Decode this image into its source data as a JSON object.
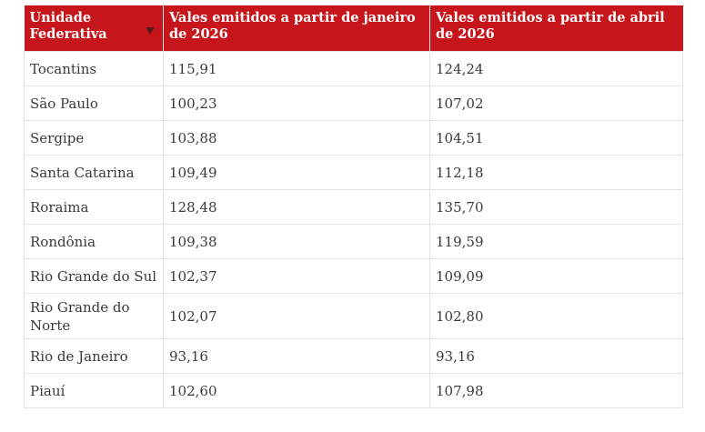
{
  "table": {
    "headers": [
      "Unidade Federativa",
      "Vales emitidos a partir de janeiro de 2026",
      "Vales emitidos a partir de abril de 2026"
    ],
    "sort_icon": "triangle-down-icon",
    "rows": [
      [
        "Tocantins",
        "115,91",
        "124,24"
      ],
      [
        "São Paulo",
        "100,23",
        "107,02"
      ],
      [
        "Sergipe",
        "103,88",
        "104,51"
      ],
      [
        "Santa Catarina",
        "109,49",
        "112,18"
      ],
      [
        "Roraima",
        "128,48",
        "135,70"
      ],
      [
        "Rondônia",
        "109,38",
        "119,59"
      ],
      [
        "Rio Grande do Sul",
        "102,37",
        "109,09"
      ],
      [
        "Rio Grande do Norte",
        "102,07",
        "102,80"
      ],
      [
        "Rio de Janeiro",
        "93,16",
        "93,16"
      ],
      [
        "Piauí",
        "102,60",
        "107,98"
      ]
    ]
  },
  "colors": {
    "header_bg": "#c6161c",
    "header_text": "#ffffff",
    "body_text": "#3a3a3a",
    "border": "#e3e3e3"
  }
}
